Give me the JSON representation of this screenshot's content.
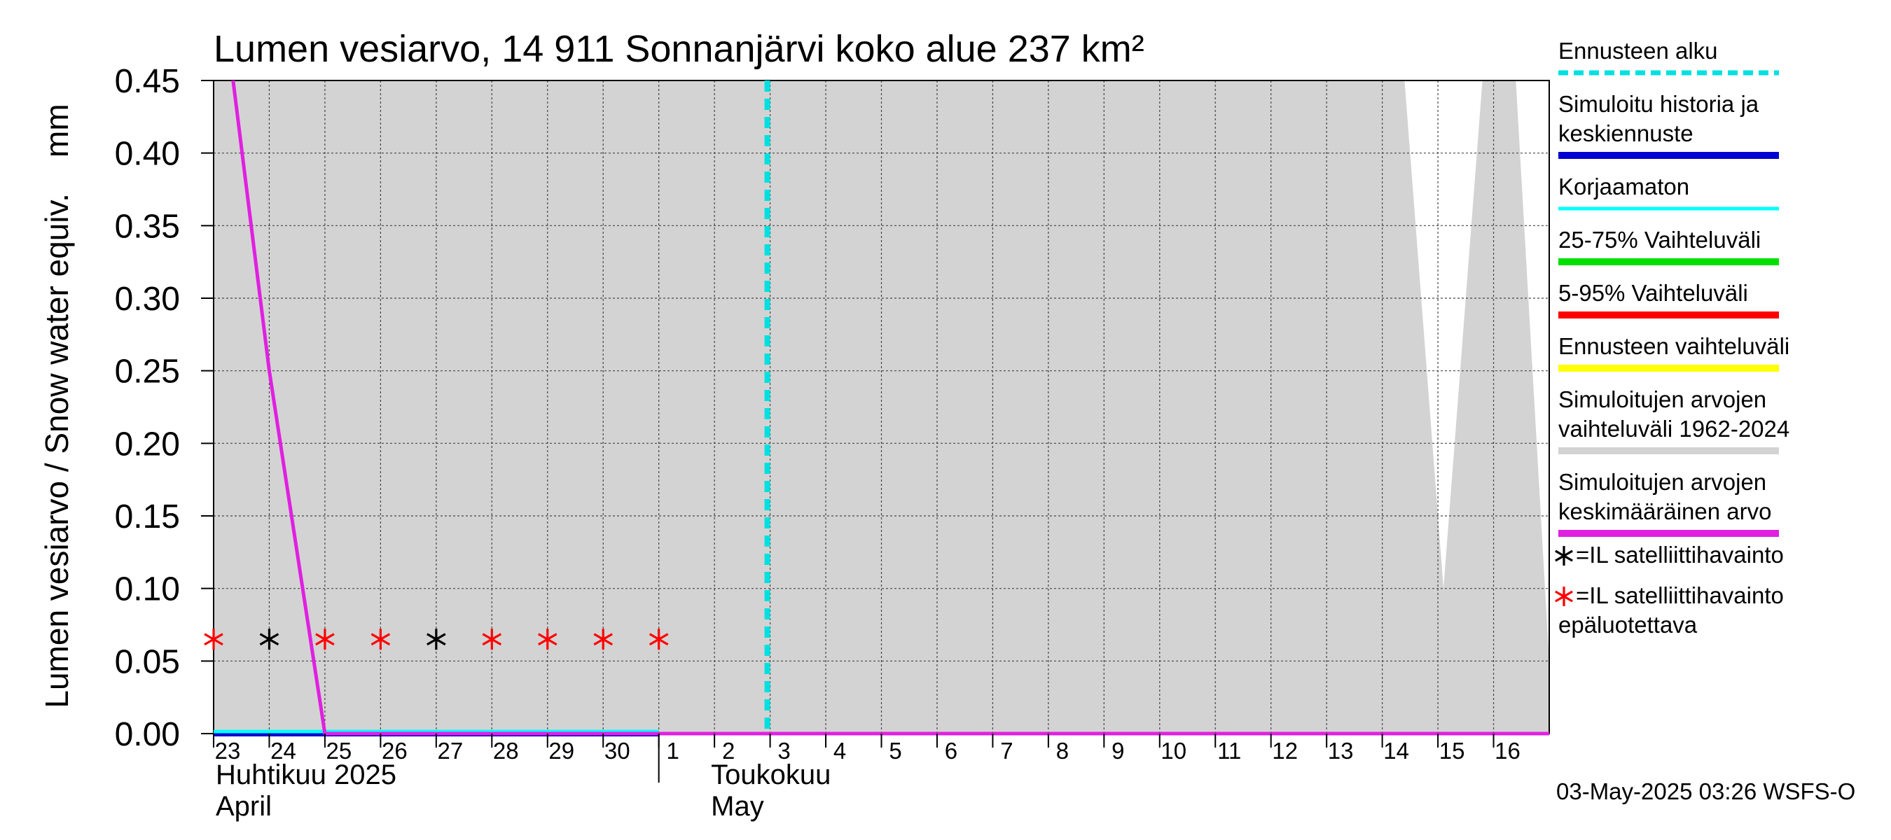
{
  "chart_data": {
    "type": "line",
    "title": "Lumen vesiarvo, 14 911 Sonnanjärvi koko alue 237 km²",
    "ylabel": "Lumen vesiarvo / Snow water equiv.    mm",
    "ylim": [
      0,
      0.45
    ],
    "yticks": [
      "0.00",
      "0.05",
      "0.10",
      "0.15",
      "0.20",
      "0.25",
      "0.30",
      "0.35",
      "0.40",
      "0.45"
    ],
    "ytick_values": [
      0,
      0.05,
      0.1,
      0.15,
      0.2,
      0.25,
      0.3,
      0.35,
      0.4,
      0.45
    ],
    "x_day_range": [
      0,
      24
    ],
    "x_ticks": [
      {
        "label": "23",
        "day": 0
      },
      {
        "label": "24",
        "day": 1
      },
      {
        "label": "25",
        "day": 2
      },
      {
        "label": "26",
        "day": 3
      },
      {
        "label": "27",
        "day": 4
      },
      {
        "label": "28",
        "day": 5
      },
      {
        "label": "29",
        "day": 6
      },
      {
        "label": "30",
        "day": 7
      },
      {
        "label": "1",
        "day": 8
      },
      {
        "label": "2",
        "day": 9
      },
      {
        "label": "3",
        "day": 10
      },
      {
        "label": "4",
        "day": 11
      },
      {
        "label": "5",
        "day": 12
      },
      {
        "label": "6",
        "day": 13
      },
      {
        "label": "7",
        "day": 14
      },
      {
        "label": "8",
        "day": 15
      },
      {
        "label": "9",
        "day": 16
      },
      {
        "label": "10",
        "day": 17
      },
      {
        "label": "11",
        "day": 18
      },
      {
        "label": "12",
        "day": 19
      },
      {
        "label": "13",
        "day": 20
      },
      {
        "label": "14",
        "day": 21
      },
      {
        "label": "15",
        "day": 22
      },
      {
        "label": "16",
        "day": 23
      }
    ],
    "months": [
      {
        "fi": "Huhtikuu  2025",
        "en": "April",
        "day": 0
      },
      {
        "fi": "Toukokuu",
        "en": "May",
        "day": 8.9
      }
    ],
    "month_boundary_day": 8,
    "forecast_start_day": 10,
    "simulated_range_band": {
      "color": "#d3d3d3",
      "upper": [
        [
          0,
          0.45
        ],
        [
          21.4,
          0.45
        ],
        [
          22.1,
          0.1
        ],
        [
          22.8,
          0.45
        ],
        [
          23.4,
          0.45
        ],
        [
          24,
          0.05
        ]
      ],
      "lower": [
        [
          0,
          0
        ],
        [
          24,
          0
        ]
      ]
    },
    "series": [
      {
        "name": "Simuloitujen arvojen keskimääräinen arvo",
        "color": "#e020e0",
        "points": [
          [
            0.35,
            0.45
          ],
          [
            1,
            0.25
          ],
          [
            2,
            0.0
          ],
          [
            24,
            0.0
          ]
        ]
      },
      {
        "name": "Korjaamaton",
        "color": "#00ffff",
        "points": [
          [
            0,
            0.0
          ],
          [
            8,
            0.0
          ]
        ]
      },
      {
        "name": "Simuloitu historia ja keskiennuste",
        "color": "#0000d0",
        "points": [
          [
            0,
            0.0
          ],
          [
            8,
            0.0
          ]
        ]
      }
    ],
    "satellite_observations": [
      {
        "day": 0,
        "value": 0.065,
        "reliable": false
      },
      {
        "day": 1,
        "value": 0.065,
        "reliable": true
      },
      {
        "day": 2,
        "value": 0.065,
        "reliable": false
      },
      {
        "day": 3,
        "value": 0.065,
        "reliable": false
      },
      {
        "day": 4,
        "value": 0.065,
        "reliable": true
      },
      {
        "day": 5,
        "value": 0.065,
        "reliable": false
      },
      {
        "day": 6,
        "value": 0.065,
        "reliable": false
      },
      {
        "day": 7,
        "value": 0.065,
        "reliable": false
      },
      {
        "day": 8,
        "value": 0.065,
        "reliable": false
      }
    ],
    "legend": [
      {
        "lines": [
          "Ennusteen alku"
        ],
        "color": "#00e0e0",
        "style": "dashed"
      },
      {
        "lines": [
          "Simuloitu historia ja",
          "keskiennuste"
        ],
        "color": "#0000d0",
        "style": "solid"
      },
      {
        "lines": [
          "Korjaamaton"
        ],
        "color": "#00ffff",
        "style": "solid"
      },
      {
        "lines": [
          "25-75% Vaihteluväli"
        ],
        "color": "#00e000",
        "style": "solid"
      },
      {
        "lines": [
          "5-95% Vaihteluväli"
        ],
        "color": "#ff0000",
        "style": "solid"
      },
      {
        "lines": [
          "Ennusteen vaihteluväli"
        ],
        "color": "#ffff00",
        "style": "solid"
      },
      {
        "lines": [
          "Simuloitujen arvojen",
          "vaihteluväli 1962-2024"
        ],
        "color": "#d3d3d3",
        "style": "solid"
      },
      {
        "lines": [
          "Simuloitujen arvojen",
          "keskimääräinen arvo"
        ],
        "color": "#e020e0",
        "style": "solid"
      }
    ],
    "marker_legend": [
      {
        "lines": [
          "=IL satelliittihavainto"
        ],
        "color": "#000000"
      },
      {
        "lines": [
          "=IL satelliittihavainto",
          "epäluotettava"
        ],
        "color": "#ff0000"
      }
    ]
  },
  "footer": "03-May-2025 03:26 WSFS-O"
}
